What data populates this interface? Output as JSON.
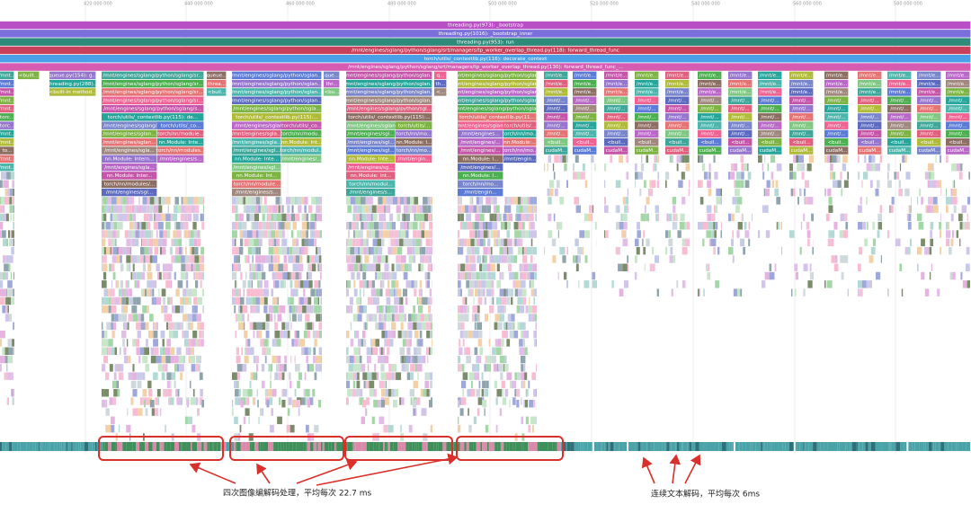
{
  "ruler": [
    "420 000 000",
    "440 000 000",
    "460 000 000",
    "480 000 000",
    "500 000 000",
    "520 000 000",
    "540 000 000",
    "560 000 000",
    "580 000 000"
  ],
  "top_frames": [
    "threading.py(973): _bootstrap",
    "threading.py(1016): _bootstrap_inner",
    "threading.py(953): run",
    "/mnt/engines/sglang/python/sglang/srt/managers/tp_worker_overlap_thread.py(118): forward_thread_func",
    "torch/utils/_contextlib.py(116): decorate_context",
    "/mnt/engines/sglang/python/sglang/srt/managers/tp_worker_overlap_thread.py(130): forward_thread_func_..."
  ],
  "small_stacks": [
    [
      "/mnt...",
      "/mnt...",
      "/mnt...",
      "/mnt...",
      "/mnt...",
      "torc...",
      "torc...",
      "/mnt...",
      "/mnt...",
      "to...",
      "/mnt...",
      "/mnt..."
    ],
    [
      "<built..."
    ],
    [
      "queue.py(154): g...",
      "threading.py(288)...",
      "<built-in method..."
    ],
    [
      "queue...",
      "threa...",
      "<buil..."
    ],
    [
      "que...",
      "thr...",
      "<bu..."
    ],
    [
      "q...",
      "th...",
      "<..."
    ]
  ],
  "image_stacks": [
    {
      "frames": [
        "/mnt/engines/sglang/python/sglang/sr...",
        "/mnt/engines/sglang/python/sglang/sr...",
        "/mnt/engines/sglang/python/sglang/sr...",
        "/mnt/engines/sglang/python/sglang/sr...",
        "/mnt/engines/sglang/python/sglang/s...",
        "torch/utils/_contextlib.py(115): de...",
        "/mnt/engines/sglang/python/sglang/s..."
      ],
      "left": [
        "/mnt/engines/sglan...",
        "/mnt/engines/sglan...",
        "/mnt/engines/sgla...",
        "nn.Module: Intern...",
        "/mnt/engines/sgla...",
        "nn.Module: Inter...",
        "torch/nn/modules/...",
        "/mnt/engines/sgl..."
      ],
      "right": [
        "torch/utils/_co...",
        "torch/nn/module...",
        "nn.Module: Inte...",
        "torch/nn/modules...",
        "/mnt/engines/s..."
      ]
    },
    {
      "frames": [
        "/mnt/engines/sglang/python/sglan...",
        "/mnt/engines/sglang/python/sglan...",
        "/mnt/engines/sglang/python/sglan...",
        "/mnt/engines/sglang/python/sglan...",
        "/mnt/engines/sglang/python/sgla...",
        "torch/utils/_contextlib.py(115):...",
        "/mnt/engines/sglang/python/sgl..."
      ],
      "left": [
        "/mnt/engines/sgla...",
        "/mnt/engines/sgla...",
        "/mnt/engines/sgl...",
        "nn.Module: Inte...",
        "/mnt/engines/sgl...",
        "nn.Module: Int...",
        "torch/nn/module...",
        "/mnt/engines/s..."
      ],
      "right": [
        "torch/utils/_co...",
        "torch/nn/modu...",
        "nn.Module: Int...",
        "torch/nn/modul...",
        "/mnt/engines/..."
      ]
    },
    {
      "frames": [
        "/mnt/engines/sglang/python/sglan...",
        "/mnt/engines/sglang/python/sglan...",
        "/mnt/engines/sglang/python/sglan...",
        "/mnt/engines/sglang/python/sglan...",
        "/mnt/engines/sglang/python/sgl...",
        "torch/utils/_contextlib.py(115):...",
        "/mnt/engines/sglang/python/sgl..."
      ],
      "left": [
        "/mnt/engines/sgl...",
        "/mnt/engines/sgl...",
        "/mnt/engines/sgl...",
        "nn.Module: Inte...",
        "/mnt/engines/sg...",
        "nn.Module: Int...",
        "torch/nn/modul...",
        "/mnt/engines/s..."
      ],
      "right": [
        "torch/utils/...",
        "torch/nn/mo...",
        "nn.Module: I...",
        "torch/nn/mo...",
        "/mnt/engin..."
      ]
    },
    {
      "frames": [
        "/mnt/engines/sglang/python/sglan...",
        "/mnt/engines/sglang/python/sglan...",
        "/mnt/engines/sglang/python/sglan...",
        "/mnt/engines/sglang/python/sglan...",
        "/mnt/engines/sglang/python/sgla...",
        "torch/utils/_contextlib.py(11...",
        "/mnt/engines/sglang/python/sgl..."
      ],
      "left": [
        "/mnt/engines...",
        "/mnt/engines/...",
        "/mnt/engines/...",
        "nn.Module: I...",
        "/mnt/engines/...",
        "nn.Module: I...",
        "torch/nn/mo...",
        "/mnt/engin..."
      ],
      "right": [
        "torch/utils/...",
        "torch/nn/mo...",
        "nn.Module:...",
        "torch/nn/mo...",
        "/mnt/engin..."
      ]
    }
  ],
  "text_decode_stack": [
    "/mnt/e...",
    "/mnt/e...",
    "/mnt/e...",
    "/mnt/...",
    "/mnt/...",
    "/mnt/...",
    "/mnt/...",
    "/mnt/...",
    "<buil...",
    "cudaM..."
  ],
  "annotations": [
    "四次图像编解码处理，平均每次 22.7 ms",
    "连续文本解码，平均每次 6ms"
  ]
}
